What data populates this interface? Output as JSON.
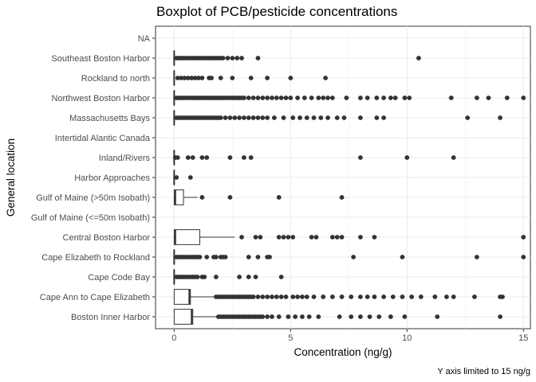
{
  "chart_data": {
    "type": "boxplot",
    "orientation": "horizontal",
    "title": "Boxplot of PCB/pesticide concentrations",
    "xlabel": "Concentration (ng/g)",
    "ylabel": "General location",
    "caption": "Y axis limited to 15 ng/g",
    "xlim": [
      -0.8,
      15.3
    ],
    "xticks": [
      0,
      5,
      10,
      15
    ],
    "grid": true,
    "legend": "none",
    "categories": [
      "NA",
      "Southeast Boston Harbor",
      "Rockland to north",
      "Northwest Boston Harbor",
      "Massachusetts Bays",
      "Intertidal Alantic Canada",
      "Inland/Rivers",
      "Harbor Approaches",
      "Gulf of Maine (>50m Isobath)",
      "Gulf of Maine (<=50m Isobath)",
      "Central Boston Harbor",
      "Cape Elizabeth to Rockland",
      "Cape Code Bay",
      "Cape Ann to Cape Elizabeth",
      "Boston Inner Harbor"
    ],
    "boxes": [
      null,
      {
        "min": 0,
        "q1": 0,
        "median": 0,
        "q3": 0,
        "max": 0,
        "outliers": [
          0.1,
          0.2,
          0.3,
          0.4,
          0.5,
          0.6,
          0.7,
          0.8,
          0.9,
          1.0,
          1.1,
          1.2,
          1.3,
          1.4,
          1.5,
          1.6,
          1.7,
          1.8,
          1.9,
          2.0,
          2.1,
          2.3,
          2.5,
          2.7,
          2.9,
          3.6,
          10.5
        ]
      },
      {
        "min": 0,
        "q1": 0,
        "median": 0,
        "q3": 0,
        "max": 0,
        "outliers": [
          0.15,
          0.3,
          0.45,
          0.6,
          0.75,
          0.9,
          1.05,
          1.2,
          1.5,
          1.6,
          2.0,
          2.5,
          3.3,
          4.0,
          5.0,
          6.5
        ]
      },
      {
        "min": 0,
        "q1": 0,
        "median": 0,
        "q3": 0,
        "max": 0,
        "outliers": [
          0.1,
          0.2,
          0.3,
          0.4,
          0.5,
          0.6,
          0.7,
          0.8,
          0.9,
          1.0,
          1.1,
          1.2,
          1.3,
          1.4,
          1.5,
          1.6,
          1.7,
          1.8,
          1.9,
          2.0,
          2.1,
          2.2,
          2.3,
          2.4,
          2.5,
          2.6,
          2.7,
          2.8,
          2.9,
          3.0,
          3.2,
          3.4,
          3.6,
          3.8,
          4.0,
          4.2,
          4.4,
          4.6,
          4.8,
          5.0,
          5.3,
          5.6,
          5.9,
          6.2,
          6.4,
          6.6,
          6.8,
          7.4,
          8.0,
          8.3,
          8.7,
          9.0,
          9.3,
          9.5,
          9.9,
          10.1,
          11.9,
          13.0,
          13.5,
          14.3,
          15.0
        ]
      },
      {
        "min": 0,
        "q1": 0,
        "median": 0,
        "q3": 0,
        "max": 0,
        "outliers": [
          0.1,
          0.2,
          0.3,
          0.4,
          0.5,
          0.6,
          0.7,
          0.8,
          0.9,
          1.0,
          1.1,
          1.2,
          1.3,
          1.4,
          1.5,
          1.6,
          1.7,
          1.8,
          1.9,
          2.0,
          2.2,
          2.4,
          2.6,
          2.8,
          3.0,
          3.2,
          3.4,
          3.6,
          3.8,
          4.0,
          4.3,
          4.7,
          5.1,
          5.4,
          5.7,
          6.0,
          6.3,
          6.6,
          7.0,
          7.3,
          8.0,
          8.7,
          9.0,
          12.6,
          14.0
        ]
      },
      null,
      {
        "min": 0,
        "q1": 0,
        "median": 0,
        "q3": 0,
        "max": 0,
        "outliers": [
          0.05,
          0.15,
          0.6,
          0.8,
          1.2,
          1.4,
          2.4,
          3.0,
          3.3,
          8.0,
          10.0,
          12.0
        ]
      },
      {
        "min": 0,
        "q1": 0,
        "median": 0,
        "q3": 0,
        "max": 0,
        "outliers": [
          0.1,
          0.7
        ]
      },
      {
        "min": 0,
        "q1": 0,
        "median": 0.05,
        "q3": 0.4,
        "max": 1.0,
        "outliers": [
          1.2,
          2.4,
          4.5,
          7.2
        ]
      },
      null,
      {
        "min": 0,
        "q1": 0,
        "median": 0.05,
        "q3": 1.1,
        "max": 2.6,
        "outliers": [
          2.9,
          3.5,
          3.7,
          4.5,
          4.7,
          4.9,
          5.1,
          5.9,
          6.1,
          6.8,
          7.0,
          7.2,
          8.0,
          8.6,
          15.0
        ]
      },
      {
        "min": 0,
        "q1": 0,
        "median": 0,
        "q3": 0,
        "max": 0,
        "outliers": [
          0.1,
          0.2,
          0.3,
          0.4,
          0.5,
          0.6,
          0.7,
          0.8,
          0.9,
          1.0,
          1.1,
          1.4,
          1.7,
          1.8,
          2.0,
          2.1,
          2.2,
          3.2,
          3.6,
          4.0,
          4.1,
          7.7,
          9.8,
          13.0,
          15.0
        ]
      },
      {
        "min": 0,
        "q1": 0,
        "median": 0,
        "q3": 0,
        "max": 0,
        "outliers": [
          0.1,
          0.2,
          0.3,
          0.4,
          0.5,
          0.6,
          0.7,
          0.8,
          0.9,
          1.0,
          1.2,
          1.3,
          1.8,
          2.8,
          3.2,
          3.5,
          4.6
        ]
      },
      {
        "min": 0,
        "q1": 0,
        "median": 0.65,
        "q3": 0.7,
        "max": 1.7,
        "outliers": [
          1.8,
          1.9,
          2.0,
          2.1,
          2.2,
          2.3,
          2.4,
          2.5,
          2.6,
          2.7,
          2.8,
          2.9,
          3.0,
          3.1,
          3.2,
          3.3,
          3.4,
          3.6,
          3.8,
          4.0,
          4.2,
          4.4,
          4.6,
          4.8,
          5.1,
          5.3,
          5.5,
          5.7,
          6.0,
          6.4,
          6.8,
          7.2,
          7.6,
          8.0,
          8.3,
          8.6,
          9.0,
          9.4,
          9.8,
          10.2,
          10.6,
          11.2,
          11.7,
          12.0,
          12.9,
          14.0,
          14.1
        ]
      },
      {
        "min": 0,
        "q1": 0,
        "median": 0.75,
        "q3": 0.8,
        "max": 1.8,
        "outliers": [
          1.9,
          2.0,
          2.1,
          2.2,
          2.3,
          2.4,
          2.5,
          2.6,
          2.7,
          2.8,
          2.9,
          3.0,
          3.1,
          3.2,
          3.3,
          3.4,
          3.5,
          3.6,
          3.7,
          3.8,
          4.0,
          4.2,
          4.5,
          4.9,
          5.2,
          5.5,
          5.8,
          6.2,
          7.1,
          7.6,
          8.0,
          8.4,
          8.8,
          9.3,
          9.9,
          11.3,
          14.0
        ]
      }
    ]
  }
}
